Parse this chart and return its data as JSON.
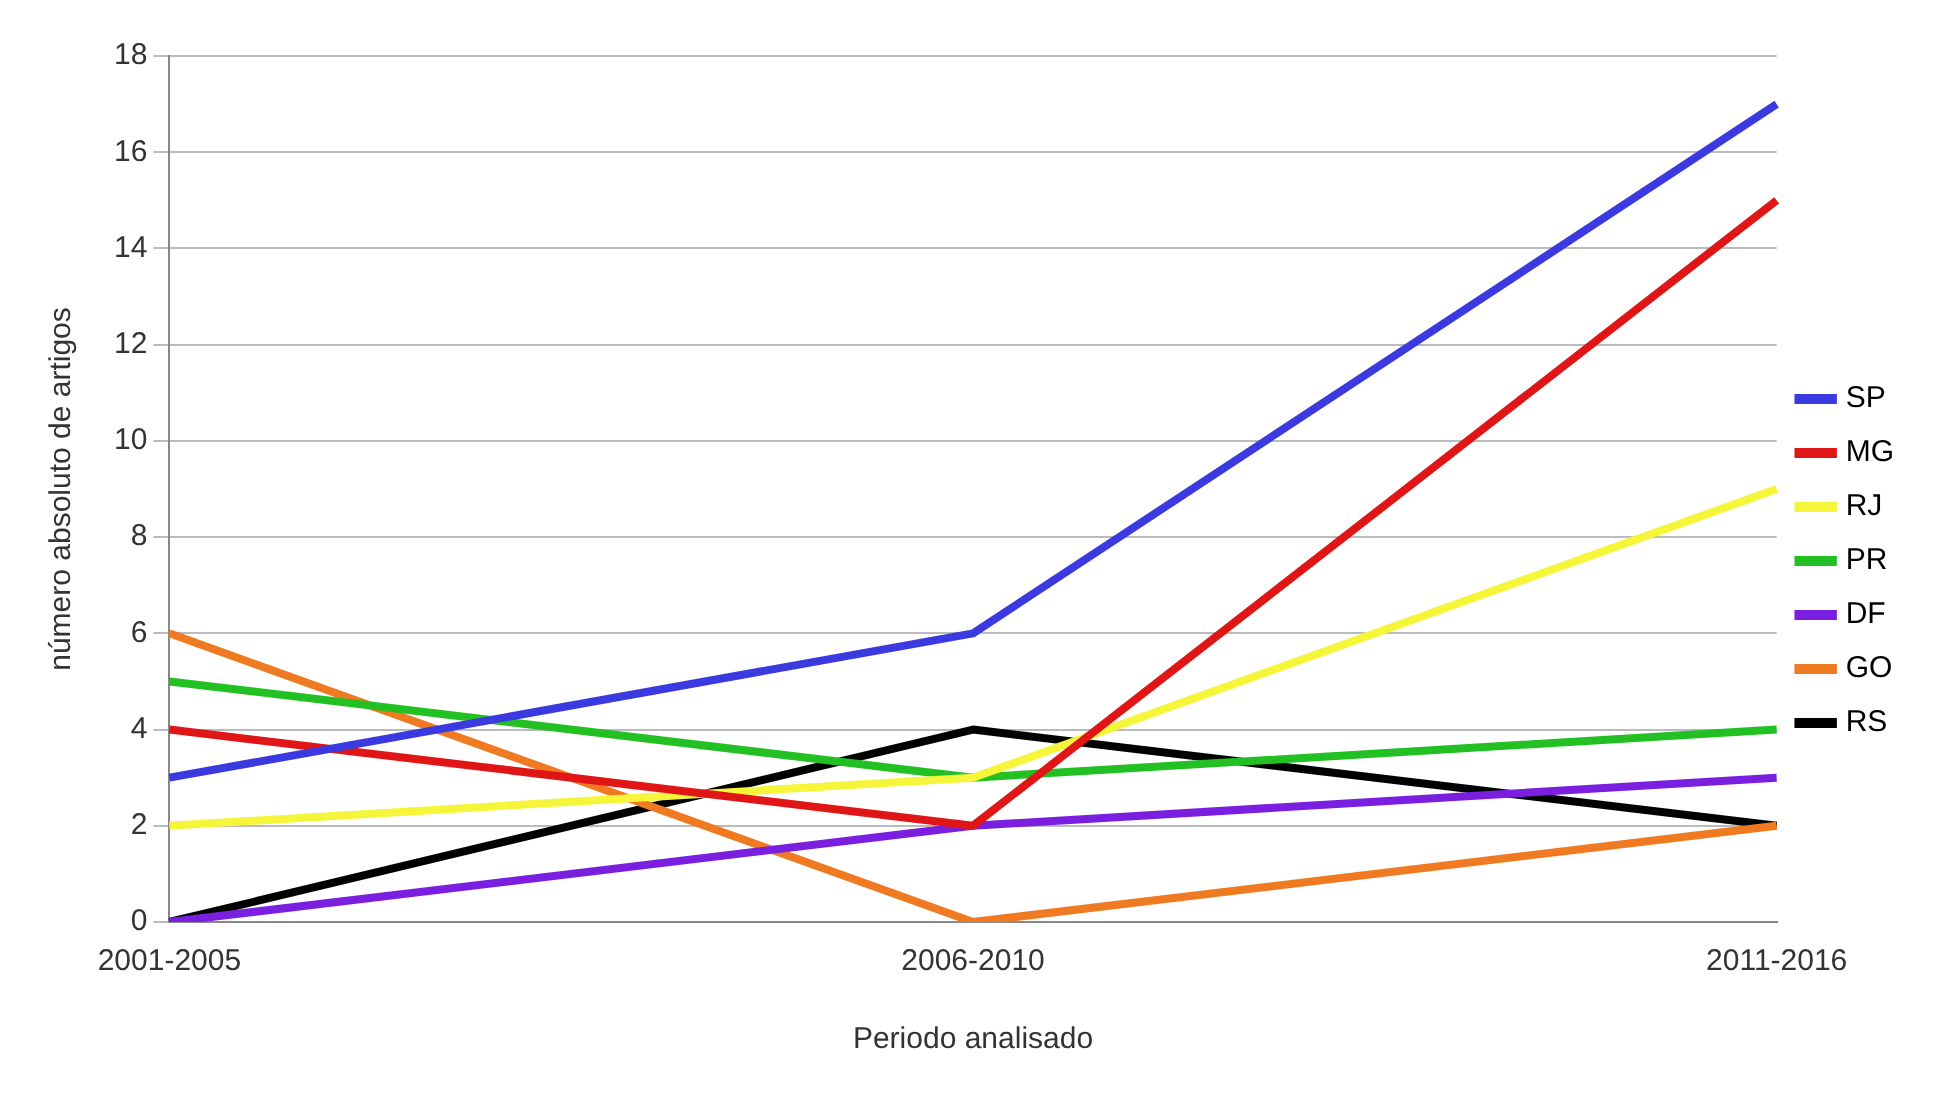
{
  "chart_data": {
    "type": "line",
    "xlabel": "Periodo analisado",
    "ylabel": "número absoluto de artigos",
    "categories": [
      "2001-2005",
      "2006-2010",
      "2011-2016"
    ],
    "series": [
      {
        "name": "SP",
        "color": "#3a3ae0",
        "values": [
          3,
          6,
          17
        ]
      },
      {
        "name": "MG",
        "color": "#e01515",
        "values": [
          4,
          2,
          15
        ]
      },
      {
        "name": "RJ",
        "color": "#f5f53a",
        "values": [
          2,
          3,
          9
        ]
      },
      {
        "name": "PR",
        "color": "#22c022",
        "values": [
          5,
          3,
          4
        ]
      },
      {
        "name": "DF",
        "color": "#7a1ee0",
        "values": [
          0,
          2,
          3
        ]
      },
      {
        "name": "GO",
        "color": "#f07a22",
        "values": [
          6,
          0,
          2
        ]
      },
      {
        "name": "RS",
        "color": "#000000",
        "values": [
          0,
          4,
          2
        ]
      }
    ],
    "ylim": [
      0,
      18
    ],
    "yticks": [
      0,
      2,
      4,
      6,
      8,
      10,
      12,
      14,
      16,
      18
    ],
    "grid": "y",
    "legend": "right",
    "marker": "none",
    "line_style": "solid"
  }
}
